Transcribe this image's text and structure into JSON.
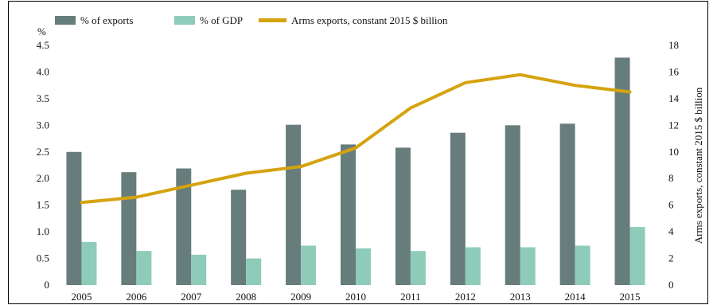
{
  "chart_data": {
    "type": "bar",
    "categories": [
      "2005",
      "2006",
      "2007",
      "2008",
      "2009",
      "2010",
      "2011",
      "2012",
      "2013",
      "2014",
      "2015"
    ],
    "series": [
      {
        "name": "% of exports",
        "kind": "bar",
        "axis": "left",
        "color": "#667d7b",
        "values": [
          2.5,
          2.12,
          2.19,
          1.79,
          3.01,
          2.64,
          2.58,
          2.86,
          3.0,
          3.03,
          4.27
        ]
      },
      {
        "name": "% of GDP",
        "kind": "bar",
        "axis": "left",
        "color": "#8fcbb9",
        "values": [
          0.81,
          0.64,
          0.57,
          0.5,
          0.74,
          0.69,
          0.64,
          0.71,
          0.71,
          0.74,
          1.09
        ]
      },
      {
        "name": "Arms exports, constant 2015 $ billion",
        "kind": "line",
        "axis": "right",
        "color": "#d5a30f",
        "values": [
          6.2,
          6.6,
          7.5,
          8.4,
          8.9,
          10.3,
          13.3,
          15.2,
          15.8,
          15.0,
          14.5
        ]
      }
    ],
    "y_left": {
      "label": "%",
      "ylim": [
        0,
        4.5
      ],
      "ticks": [
        "0",
        "0.5",
        "1.0",
        "1.5",
        "2.0",
        "2.5",
        "3.0",
        "3.5",
        "4.0",
        "4.5"
      ]
    },
    "y_right": {
      "label": "Arms exports, constant 2015 $ billion",
      "ylim": [
        0,
        18
      ],
      "ticks": [
        "0",
        "2",
        "4",
        "6",
        "8",
        "10",
        "12",
        "14",
        "16",
        "18"
      ]
    },
    "legend": "top",
    "grid": false
  }
}
